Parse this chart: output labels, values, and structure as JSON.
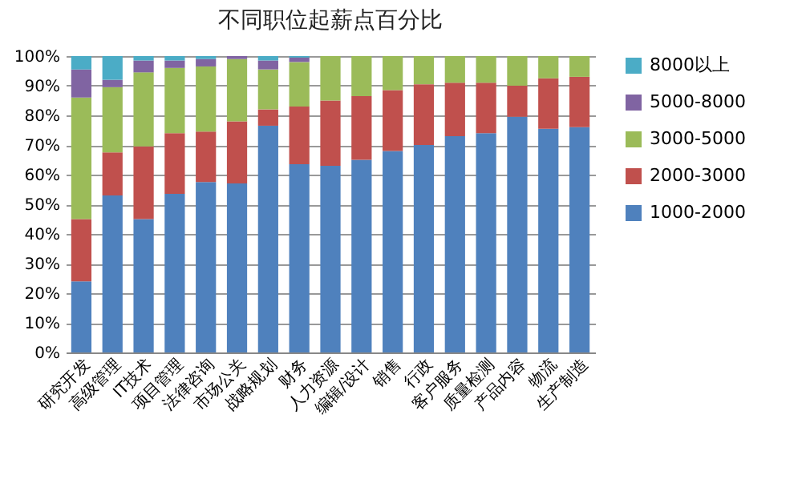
{
  "chart_data": {
    "type": "bar",
    "title": "不同职位起薪点百分比",
    "stacked": true,
    "grid": "y",
    "legend": "right",
    "categories": [
      "研究开发",
      "高级管理",
      "IT技术",
      "项目管理",
      "法律咨询",
      "市场公关",
      "战略规划",
      "财务",
      "人力资源",
      "编辑/设计",
      "销售",
      "行政",
      "客户服务",
      "质量检测",
      "产品内容",
      "物流",
      "生产制造"
    ],
    "series": [
      {
        "name": "1000-2000",
        "color": "#4f81bd",
        "values": [
          24,
          53,
          45,
          53.5,
          57.5,
          57,
          76.5,
          63.5,
          63,
          65,
          68,
          70,
          73,
          74,
          79.5,
          75.5,
          76
        ]
      },
      {
        "name": "2000-3000",
        "color": "#c0504d",
        "values": [
          21,
          14.5,
          24.5,
          20.5,
          17,
          21,
          5.5,
          19.5,
          22,
          21.5,
          20.5,
          20.5,
          18,
          17,
          10.5,
          17,
          17
        ]
      },
      {
        "name": "3000-5000",
        "color": "#9bbb59",
        "values": [
          41,
          22,
          25,
          22,
          22,
          21,
          13.5,
          15,
          15,
          13.5,
          11.5,
          9.5,
          9,
          9,
          10,
          7.5,
          7
        ]
      },
      {
        "name": "5000-8000",
        "color": "#8064a2",
        "values": [
          9.5,
          2.5,
          4,
          2.5,
          2.5,
          1,
          3,
          1.5,
          0,
          0,
          0,
          0,
          0,
          0,
          0,
          0,
          0
        ]
      },
      {
        "name": "8000以上",
        "color": "#4bacc6",
        "values": [
          4.5,
          8,
          1.5,
          1.5,
          1,
          0,
          1.5,
          0.5,
          0,
          0,
          0,
          0,
          0,
          0,
          0,
          0,
          0
        ]
      }
    ],
    "ylim": [
      0,
      100
    ],
    "yticks": [
      {
        "value": 0,
        "label": "0%"
      },
      {
        "value": 10,
        "label": "10%"
      },
      {
        "value": 20,
        "label": "20%"
      },
      {
        "value": 30,
        "label": "30%"
      },
      {
        "value": 40,
        "label": "40%"
      },
      {
        "value": 50,
        "label": "50%"
      },
      {
        "value": 60,
        "label": "60%"
      },
      {
        "value": 70,
        "label": "70%"
      },
      {
        "value": 80,
        "label": "80%"
      },
      {
        "value": 90,
        "label": "90%"
      },
      {
        "value": 100,
        "label": "100%"
      }
    ]
  }
}
